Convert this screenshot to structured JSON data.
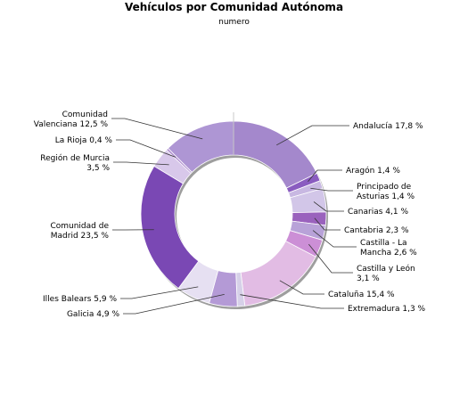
{
  "chart_data": {
    "type": "pie",
    "title": "Vehículos por Comunidad Autónoma",
    "subtitle": "numero",
    "slices": [
      {
        "label": [
          "Andalucía 17,8 %"
        ],
        "value": 17.8,
        "color": "#a488cc"
      },
      {
        "label": [
          "Aragón 1,4 %"
        ],
        "value": 1.4,
        "color": "#8a5cc0"
      },
      {
        "label": [
          "Principado de",
          "Asturias 1,4 %"
        ],
        "value": 1.4,
        "color": "#c8b8e2"
      },
      {
        "label": [
          "Canarias 4,1 %"
        ],
        "value": 4.1,
        "color": "#d2c6e8"
      },
      {
        "label": [
          "Cantabria 2,3 %"
        ],
        "value": 2.3,
        "color": "#9a62bd"
      },
      {
        "label": [
          "Castilla - La",
          "Mancha 2,6 %"
        ],
        "value": 2.6,
        "color": "#b8a2d8"
      },
      {
        "label": [
          "Castilla y León",
          "3,1 %"
        ],
        "value": 3.1,
        "color": "#cc8fd6"
      },
      {
        "label": [
          "Cataluña 15,4 %"
        ],
        "value": 15.4,
        "color": "#e2bce4"
      },
      {
        "label": [
          "Extremadura 1,3 %"
        ],
        "value": 1.3,
        "color": "#d6d0e8"
      },
      {
        "label": [
          "Galicia 4,9 %"
        ],
        "value": 4.9,
        "color": "#b49ad6"
      },
      {
        "label": [
          "Illes Balears 5,9 %"
        ],
        "value": 5.9,
        "color": "#e6e0f2"
      },
      {
        "label": [
          "Comunidad de",
          "Madrid 23,5 %"
        ],
        "value": 23.5,
        "color": "#7a48b4"
      },
      {
        "label": [
          "Región de Murcia",
          "3,5 %"
        ],
        "value": 3.5,
        "color": "#d8c8ea"
      },
      {
        "label": [
          "La Rioja 0,4 %"
        ],
        "value": 0.4,
        "color": "#b090d0"
      },
      {
        "label": [
          "Comunidad",
          "Valenciana 12,5 %"
        ],
        "value": 12.5,
        "color": "#ae96d4"
      }
    ]
  }
}
